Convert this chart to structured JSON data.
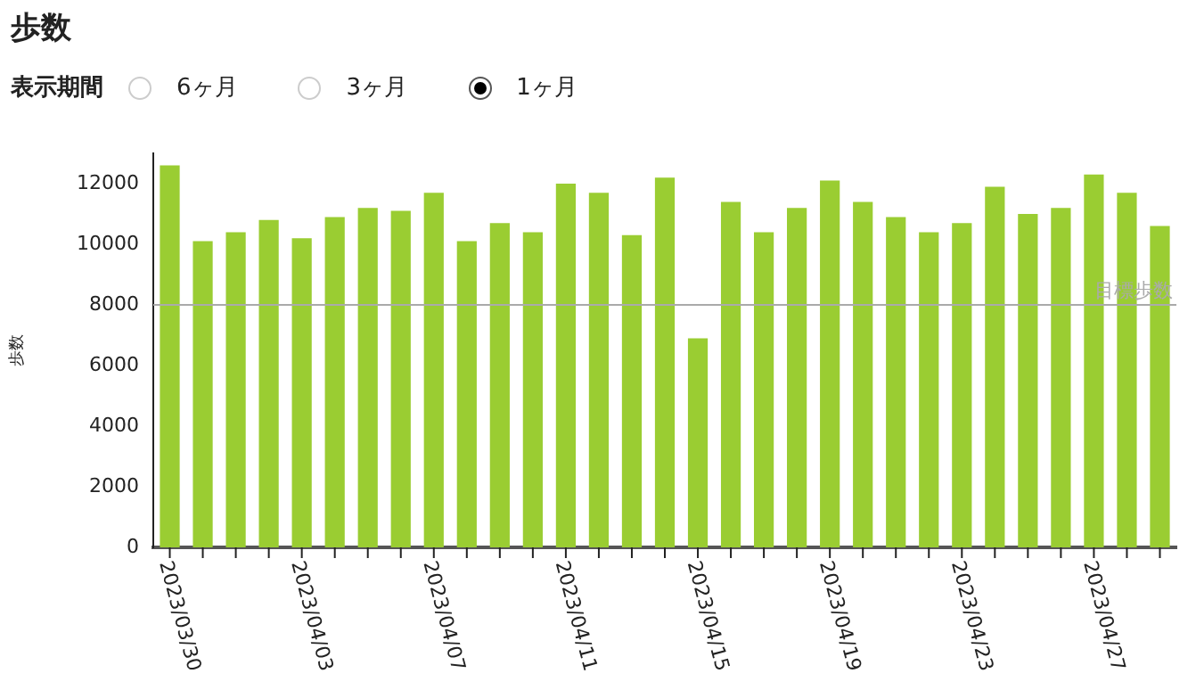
{
  "chart_data": {
    "type": "bar",
    "title": "歩数",
    "ylabel": "歩数",
    "annotations": [
      "表示期間",
      "6ヶ月",
      "3ヶ月",
      "1ヶ月"
    ],
    "categories": [
      "2023/03/30",
      null,
      null,
      null,
      "2023/04/03",
      null,
      null,
      null,
      "2023/04/07",
      null,
      null,
      null,
      "2023/04/11",
      null,
      null,
      null,
      "2023/04/15",
      null,
      null,
      null,
      "2023/04/19",
      null,
      null,
      null,
      "2023/04/23",
      null,
      null,
      null,
      "2023/04/27",
      null,
      null
    ],
    "values": [
      12600,
      10100,
      10400,
      10800,
      10200,
      10900,
      11200,
      11100,
      11700,
      10100,
      10700,
      10400,
      12000,
      11700,
      10300,
      12200,
      6900,
      11400,
      10400,
      11200,
      12100,
      11400,
      10900,
      10400,
      10700,
      11900,
      11000,
      11200,
      12300,
      11700,
      10600
    ],
    "color": "#9acd32",
    "ylim": [
      0,
      13000
    ],
    "yticks": [
      0,
      2000,
      4000,
      6000,
      8000,
      10000,
      12000
    ],
    "ref_lines": [
      {
        "axis": "y",
        "value": 8000,
        "label": "目標歩数",
        "color": "#aaaaaa"
      }
    ],
    "grid": false,
    "legend": false
  }
}
